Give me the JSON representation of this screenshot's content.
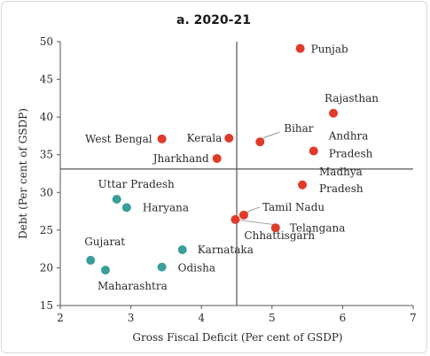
{
  "chart_data": {
    "type": "scatter",
    "title": "a. 2020-21",
    "xlabel": "Gross Fiscal Deficit (Per cent of GSDP)",
    "ylabel": "Debt (Per cent of GSDP)",
    "xlim": [
      2,
      7
    ],
    "ylim": [
      15,
      50
    ],
    "xticks": [
      "2",
      "3",
      "4",
      "5",
      "6",
      "7"
    ],
    "yticks": [
      "15",
      "20",
      "25",
      "30",
      "35",
      "40",
      "45",
      "50"
    ],
    "reference_lines": {
      "x": 4.5,
      "y": 33.1
    },
    "colors": {
      "red": "#e03a2a",
      "teal": "#3a9e9a",
      "axis": "#555555",
      "leader": "#999999"
    },
    "points": [
      {
        "label": "Punjab",
        "x": 5.4,
        "y": 49.1,
        "color": "red"
      },
      {
        "label": "Rajasthan",
        "x": 5.87,
        "y": 40.5,
        "color": "red"
      },
      {
        "label": "West Bengal",
        "x": 3.44,
        "y": 37.1,
        "color": "red"
      },
      {
        "label": "Kerala",
        "x": 4.39,
        "y": 37.2,
        "color": "red"
      },
      {
        "label": "Bihar",
        "x": 4.83,
        "y": 36.7,
        "color": "red"
      },
      {
        "label": "Andhra Pradesh",
        "x": 5.59,
        "y": 35.5,
        "color": "red"
      },
      {
        "label": "Jharkhand",
        "x": 4.22,
        "y": 34.5,
        "color": "red"
      },
      {
        "label": "Madhya Pradesh",
        "x": 5.43,
        "y": 31.0,
        "color": "red"
      },
      {
        "label": "Tamil Nadu",
        "x": 4.6,
        "y": 27.0,
        "color": "red"
      },
      {
        "label": "Chhattisgarh",
        "x": 4.48,
        "y": 26.4,
        "color": "red"
      },
      {
        "label": "Telangana",
        "x": 5.05,
        "y": 25.3,
        "color": "red"
      },
      {
        "label": "Uttar Pradesh",
        "x": 2.8,
        "y": 29.1,
        "color": "teal"
      },
      {
        "label": "Haryana",
        "x": 2.94,
        "y": 28.0,
        "color": "teal"
      },
      {
        "label": "Karnataka",
        "x": 3.73,
        "y": 22.4,
        "color": "teal"
      },
      {
        "label": "Gujarat",
        "x": 2.43,
        "y": 21.0,
        "color": "teal"
      },
      {
        "label": "Odisha",
        "x": 3.44,
        "y": 20.1,
        "color": "teal"
      },
      {
        "label": "Maharashtra",
        "x": 2.64,
        "y": 19.7,
        "color": "teal"
      }
    ]
  }
}
